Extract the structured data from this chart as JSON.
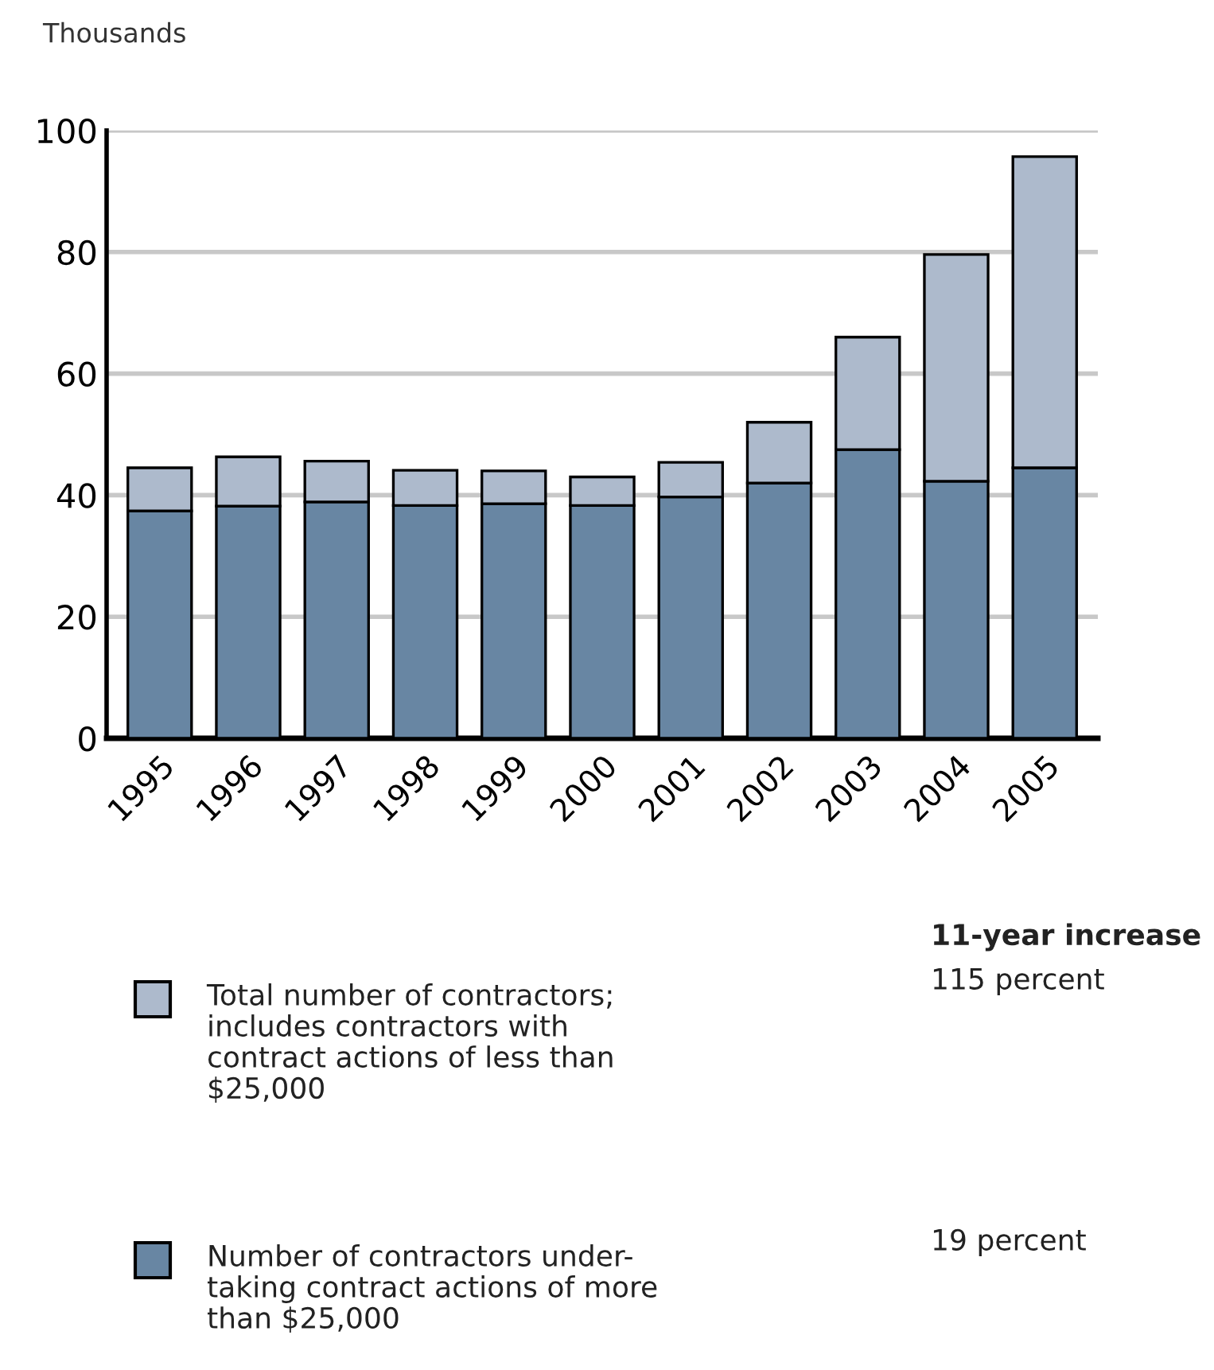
{
  "chart_data": {
    "type": "bar",
    "stacked": true,
    "ylabel": "Thousands",
    "categories": [
      "1995",
      "1996",
      "1997",
      "1998",
      "1999",
      "2000",
      "2001",
      "2002",
      "2003",
      "2004",
      "2005"
    ],
    "series": [
      {
        "name": "Number of contractors under-\ntaking contract actions of more\nthan $25,000",
        "color": "#6886a3",
        "values": [
          37.4,
          38.2,
          38.9,
          38.3,
          38.6,
          38.3,
          39.7,
          42.0,
          47.5,
          42.3,
          44.5
        ]
      },
      {
        "name": "Total number of contractors;\nincludes contractors with\ncontract actions of less than\n$25,000",
        "color": "#adbacc",
        "values": [
          7.1,
          8.1,
          6.7,
          5.8,
          5.4,
          4.7,
          5.7,
          10.0,
          18.5,
          37.3,
          51.2
        ]
      }
    ],
    "ylim": [
      0,
      100
    ],
    "yticks": [
      0,
      20,
      40,
      60,
      80,
      100
    ],
    "grid": "y",
    "legend": "bottom",
    "annotations": [
      "11-year increase",
      "115 percent",
      "19 percent"
    ]
  }
}
